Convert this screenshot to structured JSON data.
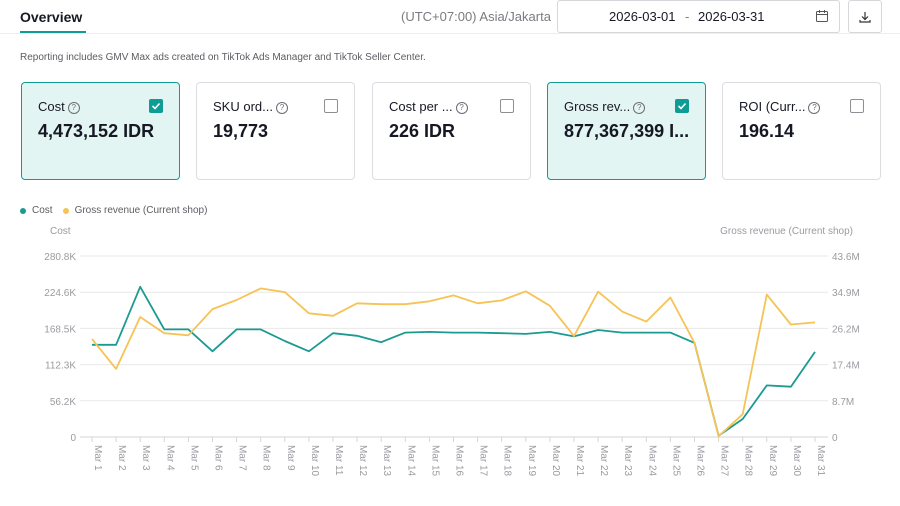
{
  "header": {
    "tab": "Overview",
    "timezone": "(UTC+07:00) Asia/Jakarta",
    "date_start": "2026-03-01",
    "date_sep": "-",
    "date_end": "2026-03-31"
  },
  "note": "Reporting includes GMV Max ads created on TikTok Ads Manager and TikTok Seller Center.",
  "cards": [
    {
      "label": "Cost",
      "value": "4,473,152 IDR",
      "checked": true
    },
    {
      "label": "SKU ord...",
      "value": "19,773",
      "checked": false
    },
    {
      "label": "Cost per ...",
      "value": "226 IDR",
      "checked": false
    },
    {
      "label": "Gross rev...",
      "value": "877,367,399 I...",
      "checked": true
    },
    {
      "label": "ROI (Curr...",
      "value": "196.14",
      "checked": false
    }
  ],
  "legend": {
    "cost": "Cost",
    "revenue": "Gross revenue (Current shop)"
  },
  "colors": {
    "cost": "#1b9a92",
    "revenue": "#f5c356",
    "accent": "#0f9b96"
  },
  "chart_data": {
    "type": "line",
    "x": [
      "Mar 1",
      "Mar 2",
      "Mar 3",
      "Mar 4",
      "Mar 5",
      "Mar 6",
      "Mar 7",
      "Mar 8",
      "Mar 9",
      "Mar 10",
      "Mar 11",
      "Mar 12",
      "Mar 13",
      "Mar 14",
      "Mar 15",
      "Mar 16",
      "Mar 17",
      "Mar 18",
      "Mar 19",
      "Mar 20",
      "Mar 21",
      "Mar 22",
      "Mar 23",
      "Mar 24",
      "Mar 25",
      "Mar 26",
      "Mar 27",
      "Mar 28",
      "Mar 29",
      "Mar 30",
      "Mar 31"
    ],
    "left_axis": {
      "label": "Cost",
      "ticks": [
        "0",
        "56.2K",
        "112.3K",
        "168.5K",
        "224.6K",
        "280.8K"
      ],
      "ylim": [
        0,
        280800
      ]
    },
    "right_axis": {
      "label": "Gross revenue (Current shop)",
      "ticks": [
        "0",
        "8.7M",
        "17.4M",
        "26.2M",
        "34.9M",
        "43.6M"
      ],
      "ylim": [
        0,
        43600000
      ]
    },
    "series": [
      {
        "name": "Cost",
        "axis": "left",
        "values": [
          143000,
          143000,
          233000,
          167000,
          167000,
          133000,
          167000,
          167000,
          149000,
          133000,
          161000,
          157000,
          147000,
          162000,
          163000,
          162000,
          162000,
          161000,
          160000,
          163000,
          156000,
          166000,
          162000,
          162000,
          162000,
          146000,
          2000,
          28000,
          80000,
          78000,
          132000
        ]
      },
      {
        "name": "Gross revenue (Current shop)",
        "axis": "right",
        "values": [
          23600000,
          16400000,
          28900000,
          25000000,
          24500000,
          30800000,
          33000000,
          35800000,
          34900000,
          29800000,
          29200000,
          32200000,
          32000000,
          32000000,
          32700000,
          34100000,
          32200000,
          32900000,
          35100000,
          31600000,
          24300000,
          35000000,
          30200000,
          27800000,
          33600000,
          22700000,
          200000,
          5500000,
          34300000,
          27100000,
          27600000
        ]
      }
    ],
    "grid": true,
    "legend_position": "top-left"
  }
}
